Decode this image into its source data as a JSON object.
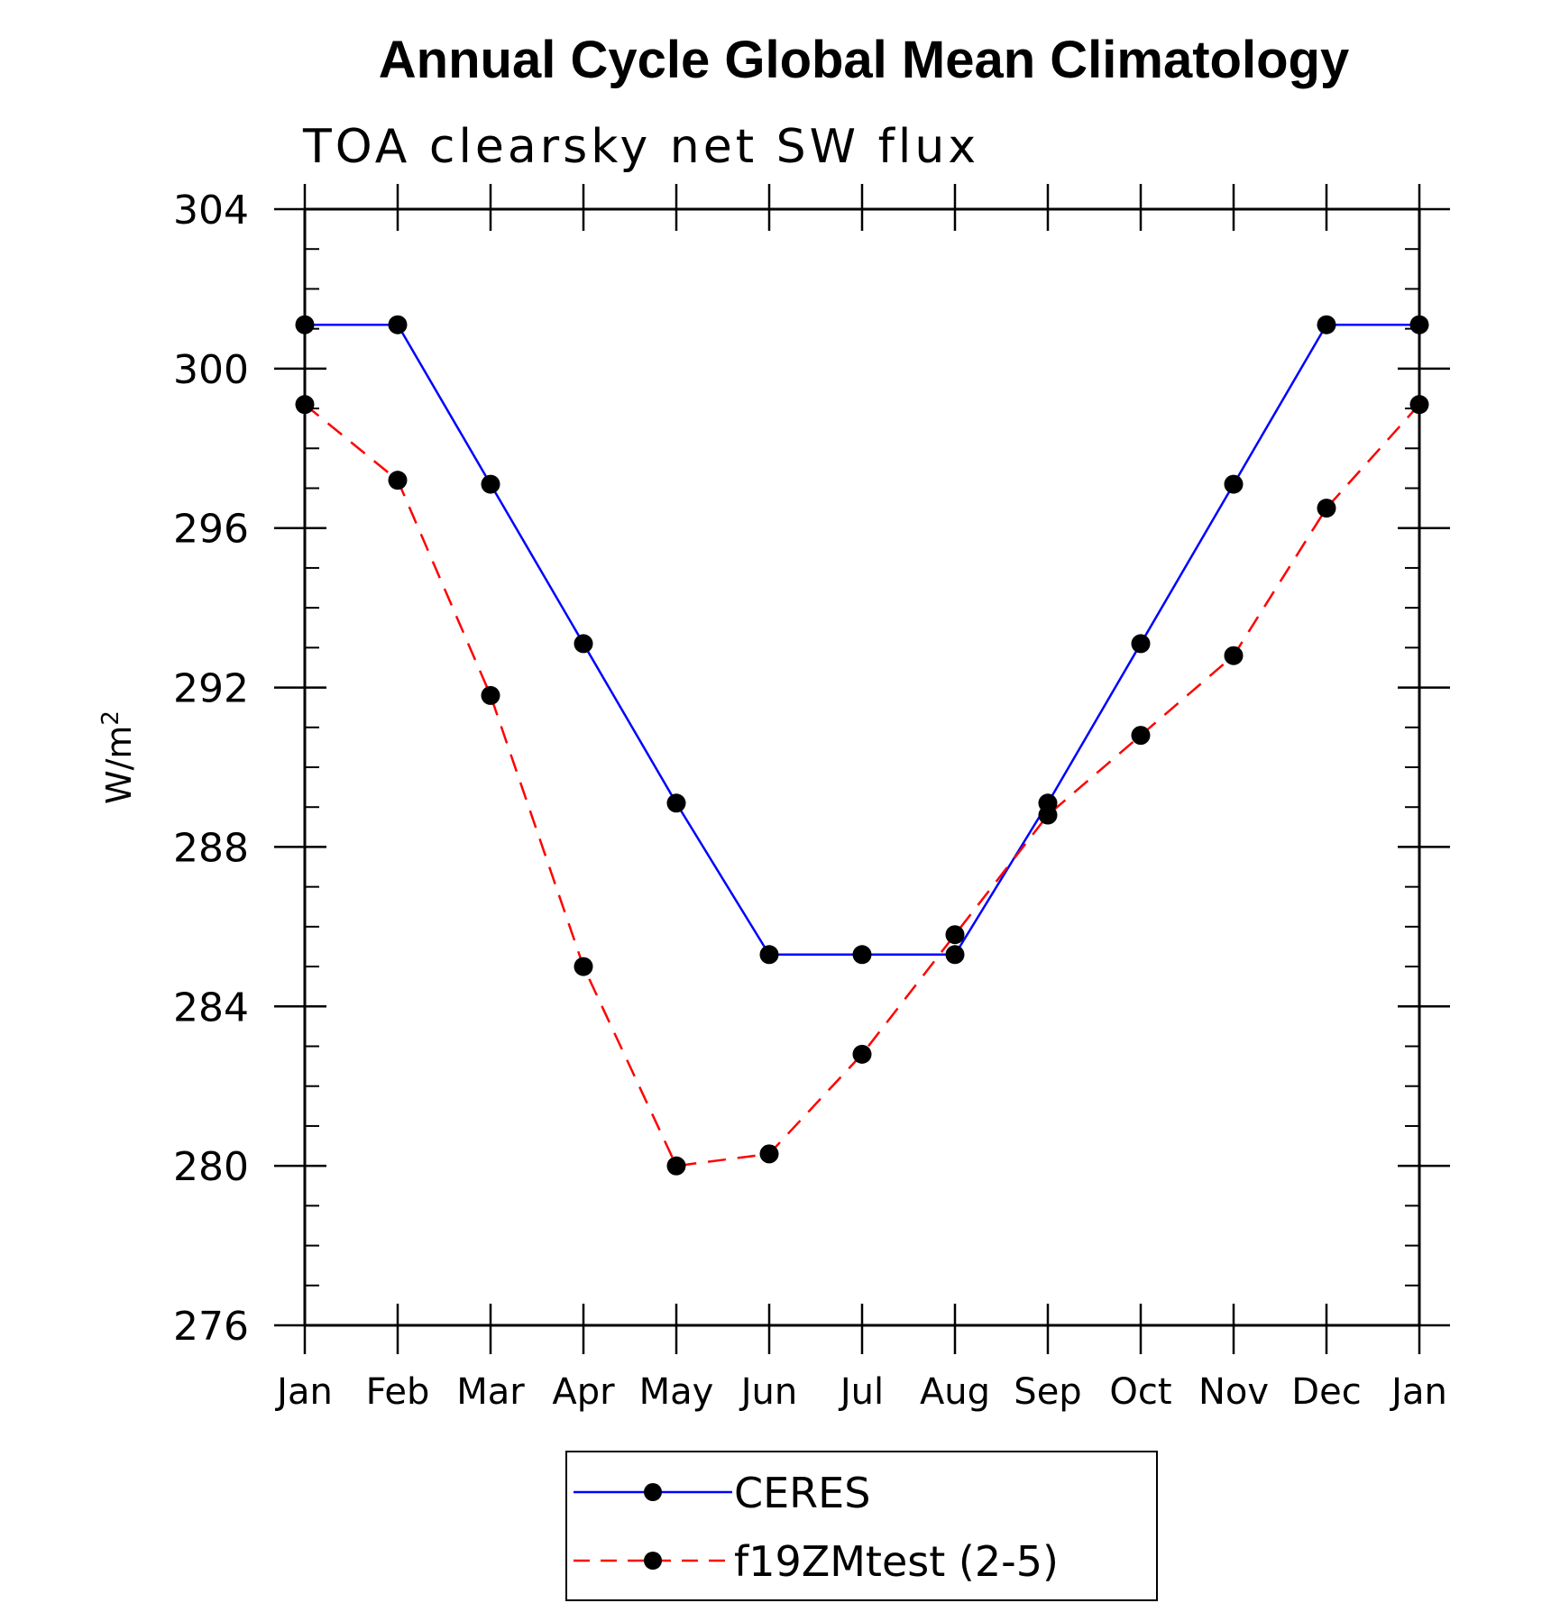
{
  "chart_data": {
    "type": "line",
    "title": "Annual Cycle Global Mean Climatology",
    "subtitle": "TOA clearsky net SW flux",
    "ylabel": "W/m",
    "ylabel_sup": "2",
    "categories": [
      "Jan",
      "Feb",
      "Mar",
      "Apr",
      "May",
      "Jun",
      "Jul",
      "Aug",
      "Sep",
      "Oct",
      "Nov",
      "Dec",
      "Jan"
    ],
    "ylim": [
      276,
      304
    ],
    "yticks": [
      276,
      280,
      284,
      288,
      292,
      296,
      300,
      304
    ],
    "grid": false,
    "legend_position": "bottom",
    "series": [
      {
        "name": "CERES",
        "color": "#0000ff",
        "line_style": "solid",
        "values": [
          301.1,
          301.1,
          297.1,
          293.1,
          289.1,
          285.3,
          285.3,
          285.3,
          289.1,
          293.1,
          297.1,
          301.1,
          301.1
        ]
      },
      {
        "name": "f19ZMtest (2-5)",
        "color": "#ff0000",
        "line_style": "dashed",
        "values": [
          299.1,
          297.2,
          291.8,
          285.0,
          280.0,
          280.3,
          282.8,
          285.8,
          288.8,
          290.8,
          292.8,
          296.5,
          299.1
        ]
      }
    ]
  }
}
